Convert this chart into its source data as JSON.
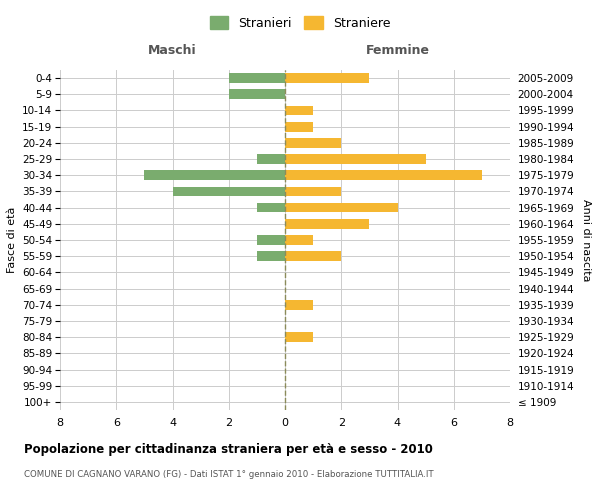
{
  "age_groups": [
    "100+",
    "95-99",
    "90-94",
    "85-89",
    "80-84",
    "75-79",
    "70-74",
    "65-69",
    "60-64",
    "55-59",
    "50-54",
    "45-49",
    "40-44",
    "35-39",
    "30-34",
    "25-29",
    "20-24",
    "15-19",
    "10-14",
    "5-9",
    "0-4"
  ],
  "birth_years": [
    "≤ 1909",
    "1910-1914",
    "1915-1919",
    "1920-1924",
    "1925-1929",
    "1930-1934",
    "1935-1939",
    "1940-1944",
    "1945-1949",
    "1950-1954",
    "1955-1959",
    "1960-1964",
    "1965-1969",
    "1970-1974",
    "1975-1979",
    "1980-1984",
    "1985-1989",
    "1990-1994",
    "1995-1999",
    "2000-2004",
    "2005-2009"
  ],
  "maschi": [
    0,
    0,
    0,
    0,
    0,
    0,
    0,
    0,
    0,
    1,
    1,
    0,
    1,
    4,
    5,
    1,
    0,
    0,
    0,
    2,
    2
  ],
  "femmine": [
    0,
    0,
    0,
    0,
    1,
    0,
    1,
    0,
    0,
    2,
    1,
    3,
    4,
    2,
    7,
    5,
    2,
    1,
    1,
    0,
    3
  ],
  "maschi_color": "#7aac6e",
  "femmine_color": "#f5b731",
  "grid_color": "#cccccc",
  "dashed_line_color": "#8b8b5a",
  "title": "Popolazione per cittadinanza straniera per età e sesso - 2010",
  "subtitle": "COMUNE DI CAGNANO VARANO (FG) - Dati ISTAT 1° gennaio 2010 - Elaborazione TUTTITALIA.IT",
  "xlabel_left": "Maschi",
  "xlabel_right": "Femmine",
  "ylabel_left": "Fasce di età",
  "ylabel_right": "Anni di nascita",
  "legend_maschi": "Stranieri",
  "legend_femmine": "Straniere",
  "xlim": 8,
  "background_color": "#ffffff"
}
